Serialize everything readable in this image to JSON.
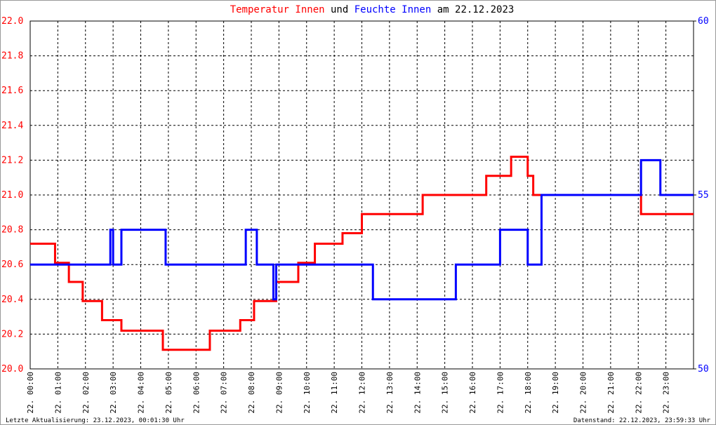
{
  "chart_data": {
    "type": "line",
    "title_parts": [
      "und",
      "am 22.12.2023"
    ],
    "xlim": [
      0,
      24
    ],
    "xticks": [
      {
        "value": 0,
        "label": "22. 00:00"
      },
      {
        "value": 1,
        "label": "22. 01:00"
      },
      {
        "value": 2,
        "label": "22. 02:00"
      },
      {
        "value": 3,
        "label": "22. 03:00"
      },
      {
        "value": 4,
        "label": "22. 04:00"
      },
      {
        "value": 5,
        "label": "22. 05:00"
      },
      {
        "value": 6,
        "label": "22. 06:00"
      },
      {
        "value": 7,
        "label": "22. 07:00"
      },
      {
        "value": 8,
        "label": "22. 08:00"
      },
      {
        "value": 9,
        "label": "22. 09:00"
      },
      {
        "value": 10,
        "label": "22. 10:00"
      },
      {
        "value": 11,
        "label": "22. 11:00"
      },
      {
        "value": 12,
        "label": "22. 12:00"
      },
      {
        "value": 13,
        "label": "22. 13:00"
      },
      {
        "value": 14,
        "label": "22. 14:00"
      },
      {
        "value": 15,
        "label": "22. 15:00"
      },
      {
        "value": 16,
        "label": "22. 16:00"
      },
      {
        "value": 17,
        "label": "22. 17:00"
      },
      {
        "value": 18,
        "label": "22. 18:00"
      },
      {
        "value": 19,
        "label": "22. 19:00"
      },
      {
        "value": 20,
        "label": "22. 20:00"
      },
      {
        "value": 21,
        "label": "22. 21:00"
      },
      {
        "value": 22,
        "label": "22. 22:00"
      },
      {
        "value": 23,
        "label": "22. 23:00"
      }
    ],
    "ylim": [
      20,
      22
    ],
    "yticks": [
      {
        "value": 20,
        "label": "20.0"
      },
      20.2,
      20.4,
      20.6,
      20.8,
      {
        "value": 21,
        "label": "21.0"
      },
      21.2,
      21.4,
      21.6,
      21.8,
      {
        "value": 22,
        "label": "22.0"
      }
    ],
    "y2lim": [
      50,
      60
    ],
    "y2ticks": [
      50,
      55,
      60
    ],
    "grid": true,
    "series": [
      {
        "name": "Temperatur Innen",
        "color": "#ff0000",
        "x": [
          0,
          0.9,
          0.9,
          1.4,
          1.4,
          1.9,
          1.9,
          2.6,
          2.6,
          3.3,
          3.3,
          4.8,
          4.8,
          6.5,
          6.5,
          7.6,
          7.6,
          8.1,
          8.1,
          8.9,
          8.9,
          9.7,
          9.7,
          10.3,
          10.3,
          11.3,
          11.3,
          12.0,
          12.0,
          14.2,
          14.2,
          16.5,
          16.5,
          17.4,
          17.4,
          18.0,
          18.0,
          18.2,
          18.2,
          22.1,
          22.1,
          24
        ],
        "values": [
          20.72,
          20.72,
          20.61,
          20.61,
          20.5,
          20.5,
          20.39,
          20.39,
          20.28,
          20.28,
          20.22,
          20.22,
          20.11,
          20.11,
          20.22,
          20.22,
          20.28,
          20.28,
          20.39,
          20.39,
          20.5,
          20.5,
          20.61,
          20.61,
          20.72,
          20.72,
          20.78,
          20.78,
          20.89,
          20.89,
          21.0,
          21.0,
          21.11,
          21.11,
          21.22,
          21.22,
          21.11,
          21.11,
          21.0,
          21.0,
          20.89,
          20.89
        ]
      },
      {
        "name": "Feuchte Innen",
        "color": "#0000ff",
        "axis": "y2",
        "x": [
          0,
          2.9,
          2.9,
          3.0,
          3.0,
          3.3,
          3.3,
          4.9,
          4.9,
          7.8,
          7.8,
          8.2,
          8.2,
          8.8,
          8.8,
          8.9,
          8.9,
          12.4,
          12.4,
          15.4,
          15.4,
          17.0,
          17.0,
          18.0,
          18.0,
          18.5,
          18.5,
          22.1,
          22.1,
          22.8,
          22.8,
          24
        ],
        "values": [
          53,
          53,
          54,
          54,
          53,
          53,
          54,
          54,
          53,
          53,
          54,
          54,
          53,
          53,
          52,
          52,
          53,
          53,
          52,
          52,
          53,
          53,
          54,
          54,
          53,
          53,
          55,
          55,
          56,
          56,
          55,
          55
        ]
      }
    ],
    "footer_left": "Letzte Aktualisierung: 23.12.2023, 00:01:30 Uhr",
    "footer_right": "Datenstand: 22.12.2023, 23:59:33 Uhr"
  }
}
